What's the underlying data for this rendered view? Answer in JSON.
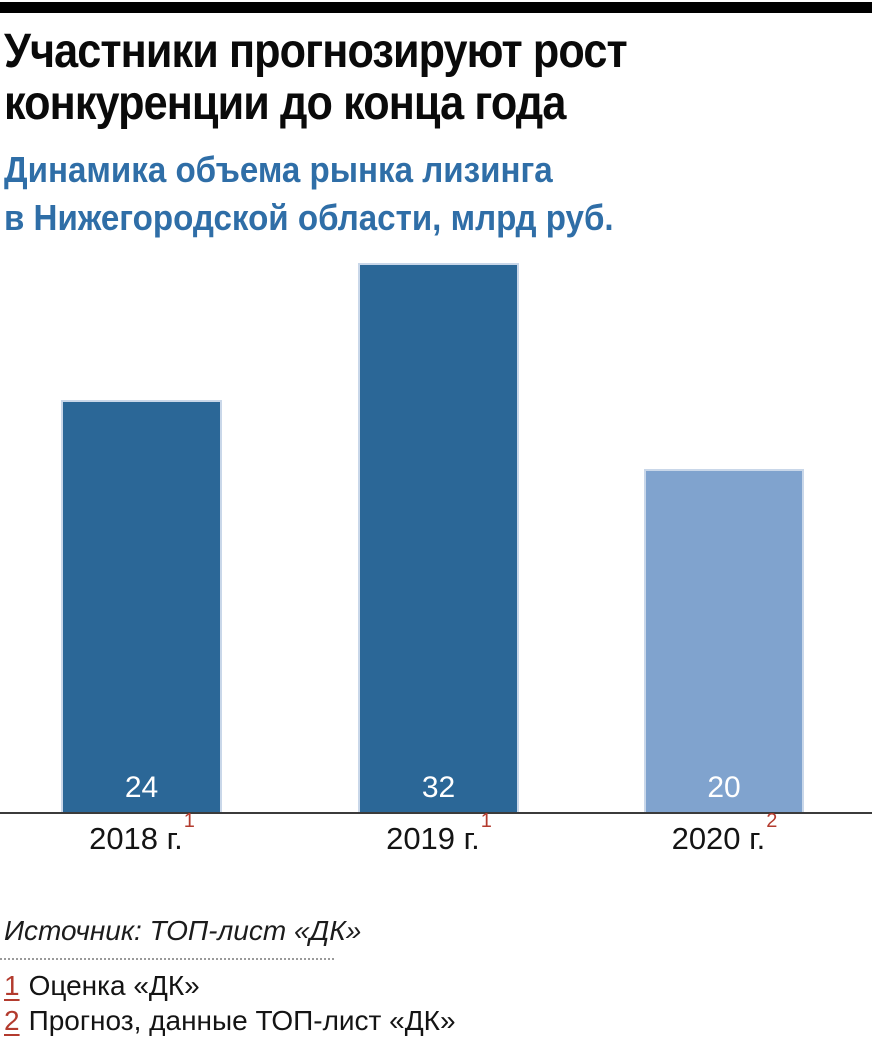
{
  "header": {
    "title_line1": "Участники прогнозируют рост",
    "title_line2": "конкуренции до конца года",
    "subtitle_line1": "Динамика объема рынка лизинга",
    "subtitle_line2": "в Нижегородской области, млрд руб."
  },
  "chart_data": {
    "type": "bar",
    "title": "Участники прогнозируют рост конкуренции до конца года",
    "subtitle": "Динамика объема рынка лизинга в Нижегородской области, млрд руб.",
    "categories": [
      "2018 г.",
      "2019 г.",
      "2020 г."
    ],
    "category_footnote_markers": [
      "1",
      "1",
      "2"
    ],
    "values": [
      24,
      32,
      20
    ],
    "value_labels": [
      "24",
      "32",
      "20"
    ],
    "ylim": [
      0,
      32
    ],
    "grid": "off",
    "legend": "none",
    "bar_colors": [
      "#2b6797",
      "#2b6797",
      "#80a3ce"
    ],
    "value_label_color": "#ffffff",
    "axis_line_color": "#3b3b3b"
  },
  "footer": {
    "source": "Источник: ТОП-лист «ДК»",
    "footnotes": [
      {
        "marker": "1",
        "text": "Оценка «ДК»"
      },
      {
        "marker": "2",
        "text": "Прогноз, данные ТОП-лист «ДК»"
      }
    ]
  },
  "colors": {
    "top_rule_black": "#000000",
    "title_black": "#0a0a0a",
    "subtitle_blue": "#2f6ea7",
    "bar_blue_dark": "#2b6797",
    "bar_blue_light": "#80a3ce",
    "footnote_red": "#b33b2e",
    "axis_gray": "#3b3b3b"
  }
}
